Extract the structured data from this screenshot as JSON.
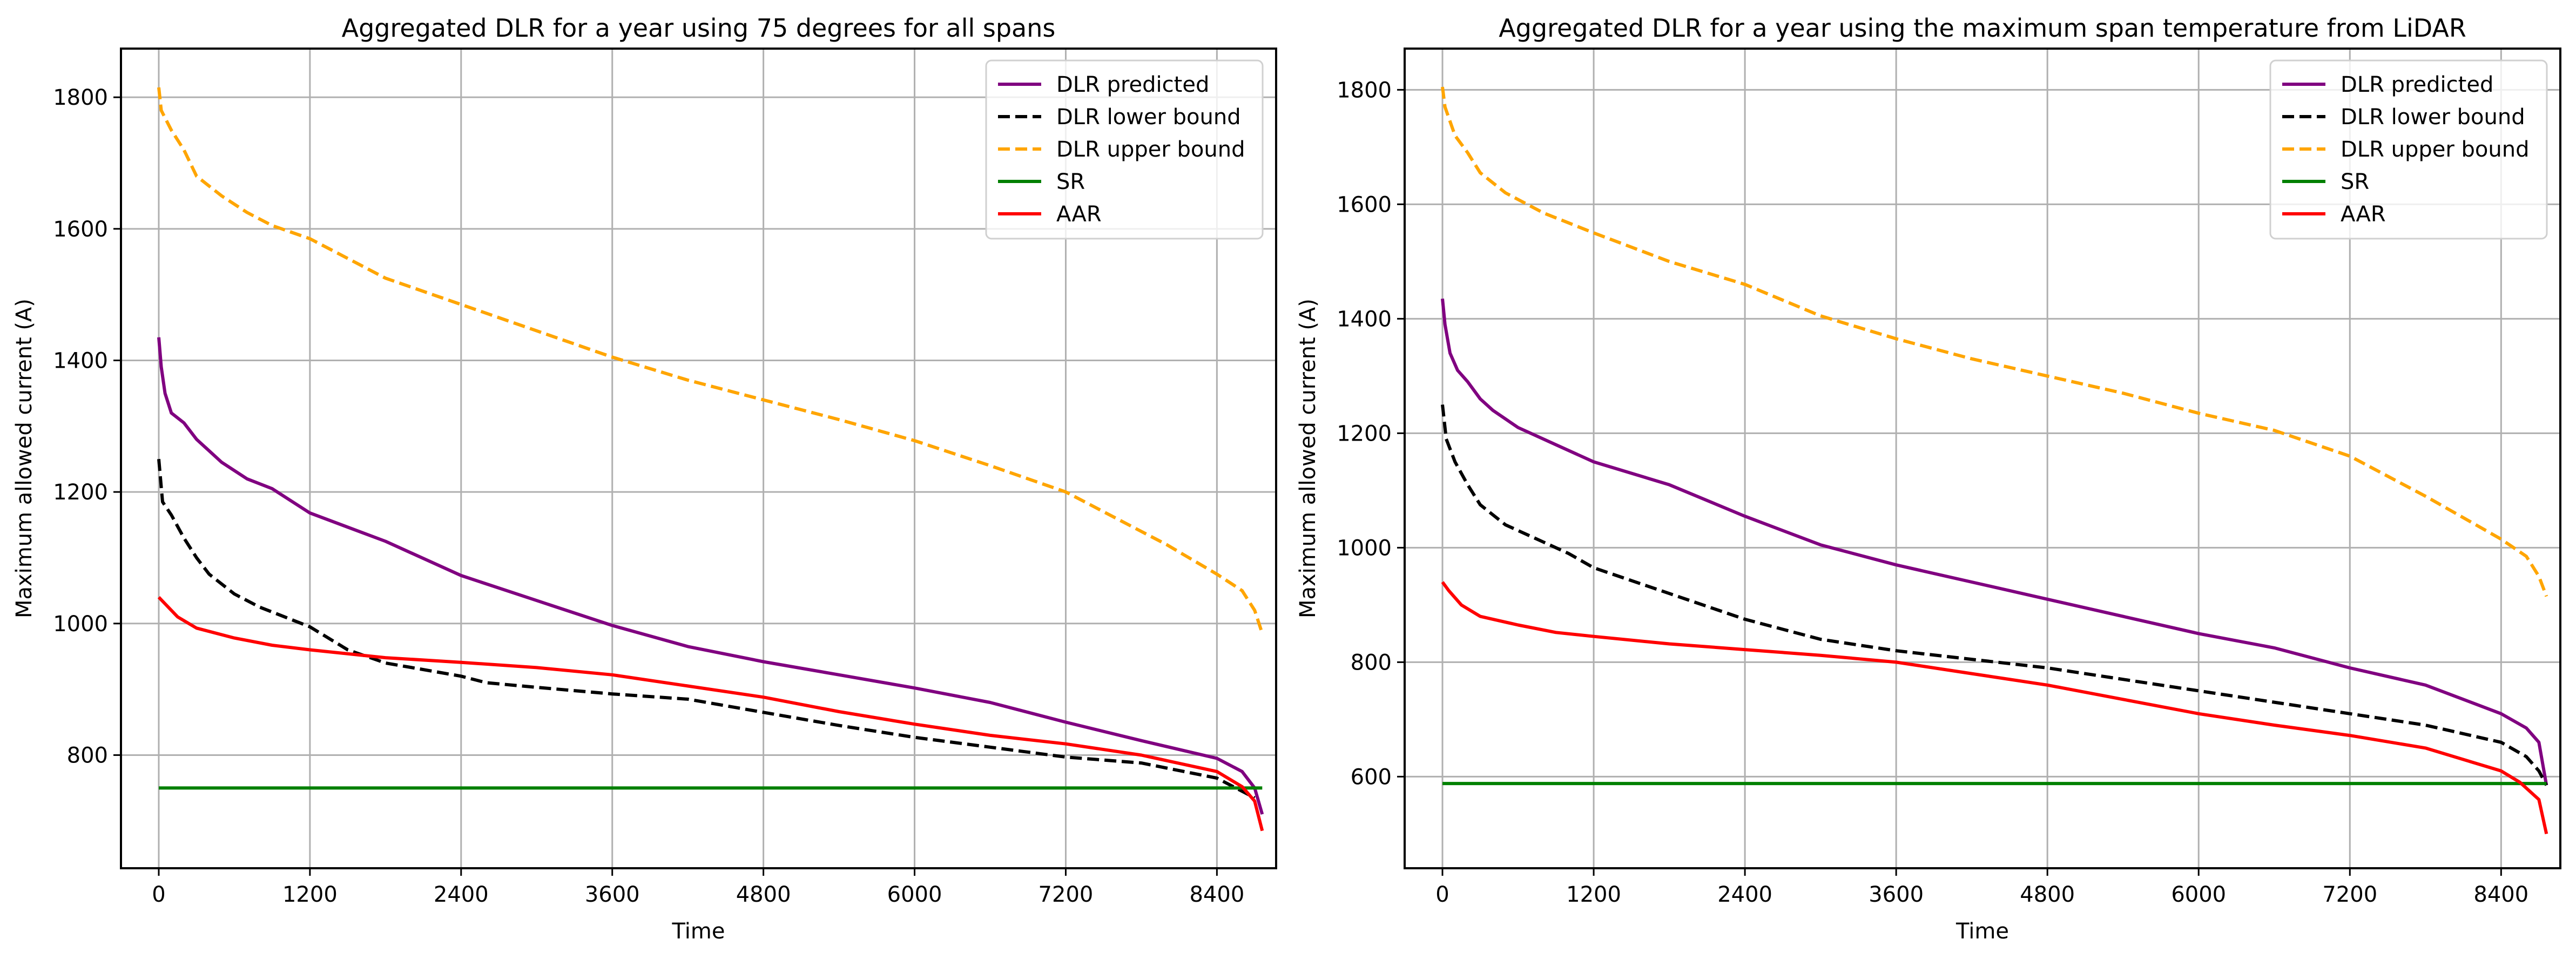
{
  "chart_data": [
    {
      "type": "line",
      "title": "Aggregated DLR for a year using 75 degrees for all spans",
      "xlabel": "Time",
      "ylabel": "Maximum allowed current (A)",
      "xlim": [
        -300,
        8870
      ],
      "ylim": [
        628,
        1874
      ],
      "xticks": [
        0,
        1200,
        2400,
        3600,
        4800,
        6000,
        7200,
        8400
      ],
      "yticks": [
        800,
        1000,
        1200,
        1400,
        1600,
        1800
      ],
      "grid": true,
      "legend_position": "top-right",
      "series": [
        {
          "name": "DLR predicted",
          "color": "#800080",
          "style": "solid",
          "x": [
            0,
            20,
            50,
            100,
            200,
            300,
            500,
            700,
            900,
            1200,
            1800,
            2400,
            3000,
            3600,
            4200,
            4800,
            5400,
            6000,
            6600,
            7200,
            7800,
            8400,
            8600,
            8700,
            8760
          ],
          "y": [
            1435,
            1390,
            1350,
            1320,
            1305,
            1280,
            1245,
            1220,
            1205,
            1168,
            1125,
            1073,
            1035,
            997,
            965,
            942,
            922,
            902,
            880,
            850,
            822,
            795,
            775,
            750,
            710
          ]
        },
        {
          "name": "DLR lower bound",
          "color": "#000000",
          "style": "dashed",
          "x": [
            0,
            30,
            100,
            200,
            300,
            400,
            600,
            800,
            1000,
            1200,
            1500,
            1800,
            2400,
            2600,
            3000,
            3600,
            4200,
            4800,
            5400,
            6000,
            6600,
            7200,
            7800,
            8400,
            8600,
            8700
          ],
          "y": [
            1250,
            1185,
            1165,
            1130,
            1100,
            1075,
            1045,
            1025,
            1010,
            995,
            960,
            940,
            920,
            910,
            903,
            893,
            885,
            865,
            845,
            827,
            812,
            797,
            788,
            765,
            745,
            735
          ]
        },
        {
          "name": "DLR upper bound",
          "color": "#ffa500",
          "style": "dashed",
          "x": [
            0,
            20,
            100,
            200,
            300,
            500,
            700,
            900,
            1200,
            1500,
            1800,
            2400,
            3000,
            3600,
            4200,
            4800,
            5400,
            6000,
            6600,
            7200,
            7600,
            8000,
            8400,
            8600,
            8700,
            8760
          ],
          "y": [
            1815,
            1780,
            1750,
            1720,
            1680,
            1650,
            1625,
            1605,
            1585,
            1555,
            1525,
            1485,
            1445,
            1405,
            1370,
            1340,
            1310,
            1278,
            1240,
            1200,
            1160,
            1120,
            1075,
            1050,
            1020,
            985
          ]
        },
        {
          "name": "SR",
          "color": "#008000",
          "style": "solid",
          "x": [
            0,
            8760
          ],
          "y": [
            750,
            750
          ]
        },
        {
          "name": "AAR",
          "color": "#ff0000",
          "style": "solid",
          "x": [
            0,
            50,
            150,
            300,
            600,
            900,
            1200,
            1800,
            2400,
            3000,
            3600,
            4200,
            4800,
            5400,
            6000,
            6600,
            7200,
            7800,
            8400,
            8600,
            8700,
            8760
          ],
          "y": [
            1040,
            1030,
            1010,
            993,
            978,
            967,
            960,
            948,
            941,
            933,
            922,
            905,
            888,
            866,
            847,
            830,
            817,
            800,
            775,
            752,
            730,
            685
          ]
        }
      ]
    },
    {
      "type": "line",
      "title": "Aggregated DLR for a year using the maximum span temperature from LiDAR",
      "xlabel": "Time",
      "ylabel": "Maximum allowed current (A)",
      "xlim": [
        -300,
        8870
      ],
      "ylim": [
        440,
        1872
      ],
      "xticks": [
        0,
        1200,
        2400,
        3600,
        4800,
        6000,
        7200,
        8400
      ],
      "yticks": [
        600,
        800,
        1000,
        1200,
        1400,
        1600,
        1800
      ],
      "grid": true,
      "legend_position": "top-right",
      "series": [
        {
          "name": "DLR predicted",
          "color": "#800080",
          "style": "solid",
          "x": [
            0,
            20,
            60,
            120,
            200,
            300,
            400,
            600,
            900,
            1200,
            1800,
            2400,
            3000,
            3600,
            4200,
            4800,
            5400,
            6000,
            6600,
            7200,
            7800,
            8400,
            8600,
            8700,
            8760
          ],
          "y": [
            1435,
            1390,
            1340,
            1310,
            1290,
            1260,
            1240,
            1210,
            1180,
            1150,
            1110,
            1055,
            1005,
            970,
            940,
            910,
            880,
            850,
            825,
            790,
            760,
            710,
            685,
            660,
            585
          ]
        },
        {
          "name": "DLR lower bound",
          "color": "#000000",
          "style": "dashed",
          "x": [
            0,
            30,
            100,
            200,
            300,
            500,
            800,
            1000,
            1200,
            1800,
            2400,
            3000,
            3600,
            4200,
            4800,
            5400,
            6000,
            6600,
            7200,
            7800,
            8400,
            8600,
            8700,
            8760
          ],
          "y": [
            1250,
            1190,
            1150,
            1110,
            1075,
            1040,
            1010,
            990,
            965,
            920,
            875,
            840,
            820,
            805,
            790,
            770,
            750,
            730,
            710,
            690,
            660,
            635,
            610,
            585
          ]
        },
        {
          "name": "DLR upper bound",
          "color": "#ffa500",
          "style": "dashed",
          "x": [
            0,
            20,
            100,
            200,
            300,
            500,
            800,
            1200,
            1800,
            2400,
            3000,
            3600,
            4200,
            4800,
            5400,
            6000,
            6600,
            7200,
            7800,
            8400,
            8600,
            8700,
            8760
          ],
          "y": [
            1805,
            1770,
            1720,
            1690,
            1655,
            1620,
            1585,
            1550,
            1500,
            1460,
            1405,
            1365,
            1330,
            1300,
            1270,
            1235,
            1205,
            1160,
            1090,
            1015,
            985,
            950,
            915
          ]
        },
        {
          "name": "SR",
          "color": "#008000",
          "style": "solid",
          "x": [
            0,
            8760
          ],
          "y": [
            588,
            588
          ]
        },
        {
          "name": "AAR",
          "color": "#ff0000",
          "style": "solid",
          "x": [
            0,
            50,
            150,
            300,
            600,
            900,
            1200,
            1800,
            2400,
            3000,
            3600,
            4200,
            4800,
            5400,
            6000,
            6600,
            7200,
            7800,
            8400,
            8550,
            8700,
            8760
          ],
          "y": [
            940,
            925,
            900,
            880,
            865,
            852,
            845,
            832,
            822,
            812,
            800,
            780,
            760,
            735,
            710,
            690,
            672,
            650,
            610,
            590,
            560,
            500
          ]
        }
      ]
    }
  ]
}
